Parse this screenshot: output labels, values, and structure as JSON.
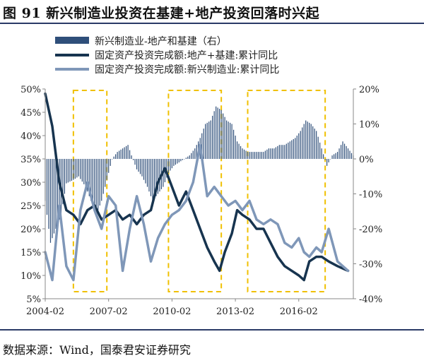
{
  "figure": {
    "title": "图 91  新兴制造业投资在基建+地产投资回落时兴起",
    "source": "数据来源：Wind，国泰君安证券研究"
  },
  "colors": {
    "bar": "#2f4f7a",
    "dark_line": "#17344f",
    "light_line": "#7f97b8",
    "highlight_box": "#f0c000",
    "axis": "#888888",
    "title_rule": "#2b3a67"
  },
  "chart_data": {
    "type": "bar+line",
    "x_start": "2004-02",
    "x_ticks": [
      "2004-02",
      "2007-02",
      "2010-02",
      "2013-02",
      "2016-02"
    ],
    "y_left": {
      "ticks": [
        "50%",
        "45%",
        "40%",
        "35%",
        "30%",
        "25%",
        "20%",
        "15%",
        "10%",
        "5%"
      ],
      "range": [
        5,
        50
      ]
    },
    "y_right": {
      "ticks": [
        "20%",
        "10%",
        "0%",
        "-10%",
        "-20%",
        "-30%",
        "-40%"
      ],
      "range": [
        -40,
        20
      ]
    },
    "legend": [
      {
        "label": "新兴制造业-地产和基建（右）",
        "kind": "bar"
      },
      {
        "label": "固定资产投资完成额:地产+基建:累计同比",
        "kind": "dark_line"
      },
      {
        "label": "固定资产投资完成额:新兴制造业:累计同比",
        "kind": "light_line"
      }
    ],
    "highlight_periods": [
      [
        "2005-06",
        "2007-01"
      ],
      [
        "2009-12",
        "2012-06"
      ],
      [
        "2013-09",
        "2017-05"
      ]
    ],
    "series": [
      {
        "name": "新兴制造业-地产和基建（右）",
        "axis": "right",
        "kind": "bar",
        "points": [
          [
            "2004-02",
            -12
          ],
          [
            "2004-05",
            -24
          ],
          [
            "2004-08",
            -20
          ],
          [
            "2004-11",
            -16
          ],
          [
            "2005-02",
            -7
          ],
          [
            "2005-06",
            -6
          ],
          [
            "2005-09",
            -5
          ],
          [
            "2006-01",
            -8
          ],
          [
            "2006-04",
            -12
          ],
          [
            "2006-07",
            -16
          ],
          [
            "2006-10",
            -12
          ],
          [
            "2007-01",
            -6
          ],
          [
            "2007-04",
            0
          ],
          [
            "2007-07",
            2
          ],
          [
            "2007-10",
            3
          ],
          [
            "2008-01",
            4
          ],
          [
            "2008-03",
            1
          ],
          [
            "2008-06",
            -3
          ],
          [
            "2008-09",
            -5
          ],
          [
            "2008-12",
            -8
          ],
          [
            "2009-03",
            -12
          ],
          [
            "2009-06",
            -10
          ],
          [
            "2009-09",
            -8
          ],
          [
            "2009-12",
            -4
          ],
          [
            "2010-03",
            -2
          ],
          [
            "2010-06",
            -1
          ],
          [
            "2010-09",
            0
          ],
          [
            "2010-12",
            1
          ],
          [
            "2011-03",
            3
          ],
          [
            "2011-06",
            6
          ],
          [
            "2011-09",
            10
          ],
          [
            "2011-12",
            11
          ],
          [
            "2012-03",
            15
          ],
          [
            "2012-06",
            14
          ],
          [
            "2012-09",
            11
          ],
          [
            "2012-12",
            10
          ],
          [
            "2013-03",
            5
          ],
          [
            "2013-06",
            3
          ],
          [
            "2013-09",
            2
          ],
          [
            "2013-12",
            2
          ],
          [
            "2014-03",
            2
          ],
          [
            "2014-06",
            2
          ],
          [
            "2014-09",
            3
          ],
          [
            "2014-12",
            3
          ],
          [
            "2015-03",
            4
          ],
          [
            "2015-06",
            4
          ],
          [
            "2015-09",
            5
          ],
          [
            "2015-12",
            6
          ],
          [
            "2016-03",
            8
          ],
          [
            "2016-06",
            11
          ],
          [
            "2016-09",
            10
          ],
          [
            "2016-12",
            8
          ],
          [
            "2017-03",
            3
          ],
          [
            "2017-06",
            -2
          ],
          [
            "2017-09",
            1
          ],
          [
            "2017-12",
            2
          ],
          [
            "2018-03",
            5
          ],
          [
            "2018-06",
            3
          ],
          [
            "2018-09",
            1
          ]
        ]
      },
      {
        "name": "固定资产投资完成额:地产+基建:累计同比",
        "axis": "left",
        "kind": "dark_line",
        "points": [
          [
            "2004-02",
            49
          ],
          [
            "2004-06",
            42
          ],
          [
            "2004-10",
            30
          ],
          [
            "2005-02",
            24
          ],
          [
            "2005-06",
            23
          ],
          [
            "2005-10",
            21
          ],
          [
            "2006-02",
            24
          ],
          [
            "2006-06",
            25
          ],
          [
            "2006-10",
            22
          ],
          [
            "2007-02",
            23
          ],
          [
            "2007-06",
            24
          ],
          [
            "2007-10",
            22
          ],
          [
            "2008-02",
            23
          ],
          [
            "2008-06",
            21
          ],
          [
            "2008-10",
            23
          ],
          [
            "2009-02",
            24
          ],
          [
            "2009-06",
            30
          ],
          [
            "2009-10",
            33
          ],
          [
            "2010-02",
            29
          ],
          [
            "2010-06",
            25
          ],
          [
            "2010-10",
            28
          ],
          [
            "2011-02",
            24
          ],
          [
            "2011-06",
            20
          ],
          [
            "2011-10",
            16
          ],
          [
            "2012-02",
            13
          ],
          [
            "2012-05",
            11
          ],
          [
            "2012-08",
            15
          ],
          [
            "2012-12",
            19
          ],
          [
            "2013-03",
            24
          ],
          [
            "2013-06",
            23
          ],
          [
            "2013-10",
            22
          ],
          [
            "2014-02",
            20
          ],
          [
            "2014-06",
            20
          ],
          [
            "2014-10",
            17
          ],
          [
            "2015-02",
            14
          ],
          [
            "2015-06",
            12
          ],
          [
            "2015-10",
            11
          ],
          [
            "2016-02",
            10
          ],
          [
            "2016-05",
            9
          ],
          [
            "2016-08",
            13
          ],
          [
            "2016-12",
            14
          ],
          [
            "2017-03",
            14
          ],
          [
            "2017-07",
            13
          ],
          [
            "2017-12",
            12
          ],
          [
            "2018-06",
            11
          ]
        ]
      },
      {
        "name": "固定资产投资完成额:新兴制造业:累计同比",
        "axis": "left",
        "kind": "light_line",
        "points": [
          [
            "2004-02",
            15
          ],
          [
            "2004-06",
            9
          ],
          [
            "2004-10",
            25
          ],
          [
            "2005-02",
            12
          ],
          [
            "2005-06",
            9
          ],
          [
            "2005-10",
            24
          ],
          [
            "2006-02",
            30
          ],
          [
            "2006-06",
            24
          ],
          [
            "2006-10",
            20
          ],
          [
            "2007-02",
            27
          ],
          [
            "2007-06",
            25
          ],
          [
            "2007-10",
            11
          ],
          [
            "2008-02",
            20
          ],
          [
            "2008-06",
            27
          ],
          [
            "2008-10",
            21
          ],
          [
            "2009-02",
            13
          ],
          [
            "2009-06",
            18
          ],
          [
            "2009-10",
            21
          ],
          [
            "2010-02",
            23
          ],
          [
            "2010-06",
            24
          ],
          [
            "2010-10",
            26
          ],
          [
            "2011-02",
            30
          ],
          [
            "2011-06",
            38
          ],
          [
            "2011-10",
            27
          ],
          [
            "2012-02",
            29
          ],
          [
            "2012-06",
            27
          ],
          [
            "2012-10",
            25
          ],
          [
            "2013-02",
            26
          ],
          [
            "2013-06",
            24
          ],
          [
            "2013-10",
            26
          ],
          [
            "2014-02",
            22
          ],
          [
            "2014-06",
            21
          ],
          [
            "2014-10",
            22
          ],
          [
            "2015-02",
            21
          ],
          [
            "2015-06",
            17
          ],
          [
            "2015-10",
            16
          ],
          [
            "2016-02",
            18
          ],
          [
            "2016-05",
            15
          ],
          [
            "2016-08",
            14
          ],
          [
            "2016-12",
            16
          ],
          [
            "2017-03",
            15
          ],
          [
            "2017-07",
            20
          ],
          [
            "2017-12",
            13
          ],
          [
            "2018-06",
            11
          ]
        ]
      }
    ]
  }
}
